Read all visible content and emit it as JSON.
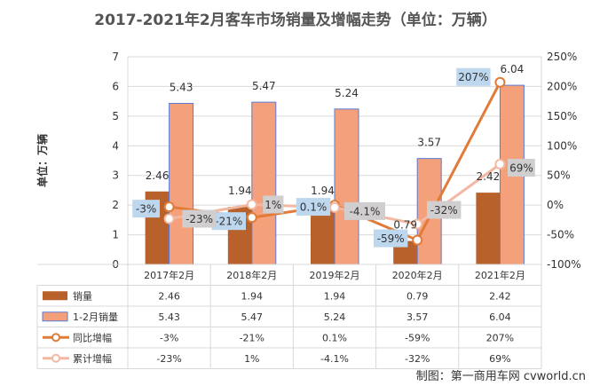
{
  "chart_data": {
    "type": "bar",
    "title": "2017-2021年2月客车市场销量及增幅走势（单位：万辆）",
    "ylabel": "单位：万辆",
    "categories": [
      "2017年2月",
      "2018年2月",
      "2019年2月",
      "2020年2月",
      "2021年2月"
    ],
    "ylim": [
      0,
      7
    ],
    "y_ticks": [
      "0",
      "1",
      "2",
      "3",
      "4",
      "5",
      "6",
      "7"
    ],
    "y2lim": [
      -100,
      250
    ],
    "y2_ticks": [
      "-100%",
      "-50%",
      "0%",
      "50%",
      "100%",
      "150%",
      "200%",
      "250%"
    ],
    "grid": true,
    "legend": "bottom (data table)",
    "series": [
      {
        "name": "销量",
        "type": "bar",
        "axis": "left",
        "color": "#B8612A",
        "values": [
          2.46,
          1.94,
          1.94,
          0.79,
          2.42
        ],
        "labels": [
          "2.46",
          "1.94",
          "1.94",
          "0.79",
          "2.42"
        ]
      },
      {
        "name": "1-2月销量",
        "type": "bar",
        "axis": "left",
        "color": "#F4A07A",
        "values": [
          5.43,
          5.47,
          5.24,
          3.57,
          6.04
        ],
        "labels": [
          "5.43",
          "5.47",
          "5.24",
          "3.57",
          "6.04"
        ]
      },
      {
        "name": "同比增幅",
        "type": "line",
        "axis": "right",
        "color": "#E07B39",
        "values": [
          -3,
          -21,
          0.1,
          -59,
          207
        ],
        "labels": [
          "-3%",
          "-21%",
          "0.1%",
          "-59%",
          "207%"
        ]
      },
      {
        "name": "累计增幅",
        "type": "line",
        "axis": "right",
        "color": "#F2B8A2",
        "values": [
          -23,
          1,
          -4.1,
          -32,
          69
        ],
        "labels": [
          "-23%",
          "1%",
          "-4.1%",
          "-32%",
          "69%"
        ]
      }
    ]
  },
  "source": "制图：第一商用车网 cvworld.cn"
}
